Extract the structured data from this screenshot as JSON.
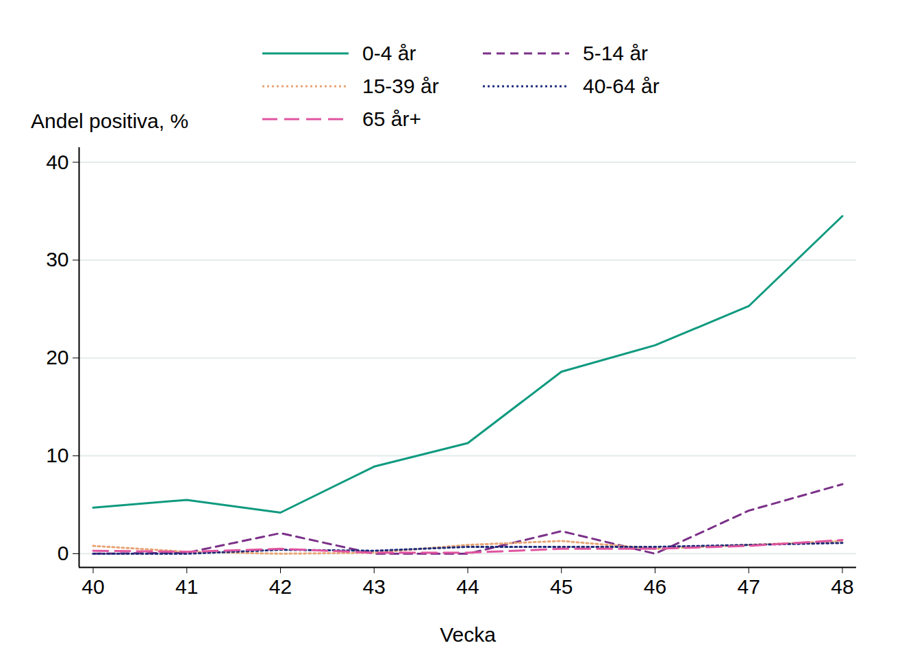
{
  "chart_data": {
    "type": "line",
    "x_label": "Vecka",
    "y_label": "Andel positiva, %",
    "x": [
      40,
      41,
      42,
      43,
      44,
      45,
      46,
      47,
      48
    ],
    "series": [
      {
        "name": "0-4 år",
        "color": "#0f9a7f",
        "line_style": "solid",
        "values": [
          4.7,
          5.5,
          4.2,
          8.9,
          11.3,
          18.6,
          21.3,
          25.3,
          34.5
        ]
      },
      {
        "name": "5-14 år",
        "color": "#7b3088",
        "line_style": "dashed",
        "values": [
          0,
          0.1,
          2.1,
          0,
          0,
          2.3,
          0,
          4.4,
          7.1
        ]
      },
      {
        "name": "15-39 år",
        "color": "#e8a474",
        "line_style": "dotted",
        "values": [
          0.8,
          0.2,
          0,
          0.1,
          0.9,
          1.3,
          0.5,
          0.9,
          1.3
        ]
      },
      {
        "name": "40-64 år",
        "color": "#1f2d7a",
        "line_style": "dotted",
        "values": [
          0,
          0,
          0.4,
          0.3,
          0.7,
          0.7,
          0.7,
          0.9,
          1.1
        ]
      },
      {
        "name": "65 år+",
        "color": "#e055a0",
        "line_style": "long-dashed",
        "values": [
          0.3,
          0.2,
          0.5,
          0.1,
          0.1,
          0.5,
          0.5,
          0.8,
          1.4
        ]
      }
    ],
    "xlim": [
      39.85,
      48.15
    ],
    "xticks": [
      40,
      41,
      42,
      43,
      44,
      45,
      46,
      47,
      48
    ],
    "ylim": [
      -1.4,
      41.5
    ],
    "yticks": [
      0,
      10,
      20,
      30,
      40
    ],
    "grid": true,
    "legend": "top"
  }
}
